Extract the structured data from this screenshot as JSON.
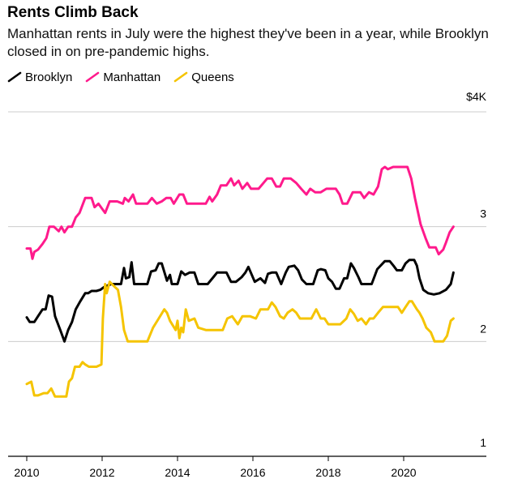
{
  "chart_data": {
    "type": "line",
    "title": "Rents Climb Back",
    "subtitle": "Manhattan rents in July were the highest they've been in a year, while Brooklyn closed in on pre-pandemic highs.",
    "xlabel": "",
    "ylabel": "",
    "x_ticks": [
      "2010",
      "2012",
      "2014",
      "2016",
      "2018",
      "2020"
    ],
    "y_ticks": [
      {
        "value": 4,
        "label": "$4K"
      },
      {
        "value": 3,
        "label": "3"
      },
      {
        "value": 2,
        "label": "2"
      },
      {
        "value": 1,
        "label": "1"
      }
    ],
    "xlim": [
      2009.85,
      2021.8
    ],
    "ylim": [
      1,
      4
    ],
    "series": [
      {
        "name": "Brooklyn",
        "color": "#000000",
        "points": [
          [
            2010.0,
            2.21
          ],
          [
            2010.08,
            2.17
          ],
          [
            2010.2,
            2.17
          ],
          [
            2010.3,
            2.22
          ],
          [
            2010.42,
            2.28
          ],
          [
            2010.5,
            2.28
          ],
          [
            2010.58,
            2.4
          ],
          [
            2010.67,
            2.39
          ],
          [
            2010.75,
            2.22
          ],
          [
            2010.9,
            2.09
          ],
          [
            2011.0,
            2.0
          ],
          [
            2011.1,
            2.1
          ],
          [
            2011.2,
            2.17
          ],
          [
            2011.3,
            2.28
          ],
          [
            2011.42,
            2.35
          ],
          [
            2011.55,
            2.42
          ],
          [
            2011.63,
            2.42
          ],
          [
            2011.72,
            2.44
          ],
          [
            2011.85,
            2.44
          ],
          [
            2011.95,
            2.45
          ],
          [
            2012.08,
            2.48
          ],
          [
            2012.25,
            2.5
          ],
          [
            2012.5,
            2.5
          ],
          [
            2012.58,
            2.64
          ],
          [
            2012.63,
            2.55
          ],
          [
            2012.72,
            2.56
          ],
          [
            2012.78,
            2.69
          ],
          [
            2012.85,
            2.5
          ],
          [
            2013.0,
            2.5
          ],
          [
            2013.2,
            2.5
          ],
          [
            2013.3,
            2.61
          ],
          [
            2013.42,
            2.62
          ],
          [
            2013.5,
            2.68
          ],
          [
            2013.58,
            2.68
          ],
          [
            2013.72,
            2.53
          ],
          [
            2013.8,
            2.58
          ],
          [
            2013.85,
            2.5
          ],
          [
            2014.0,
            2.5
          ],
          [
            2014.1,
            2.61
          ],
          [
            2014.2,
            2.58
          ],
          [
            2014.32,
            2.6
          ],
          [
            2014.45,
            2.6
          ],
          [
            2014.55,
            2.5
          ],
          [
            2014.8,
            2.5
          ],
          [
            2014.95,
            2.56
          ],
          [
            2015.05,
            2.6
          ],
          [
            2015.3,
            2.6
          ],
          [
            2015.42,
            2.52
          ],
          [
            2015.55,
            2.52
          ],
          [
            2015.7,
            2.56
          ],
          [
            2015.8,
            2.6
          ],
          [
            2015.88,
            2.65
          ],
          [
            2016.05,
            2.52
          ],
          [
            2016.2,
            2.55
          ],
          [
            2016.32,
            2.51
          ],
          [
            2016.4,
            2.59
          ],
          [
            2016.5,
            2.6
          ],
          [
            2016.62,
            2.6
          ],
          [
            2016.75,
            2.5
          ],
          [
            2016.87,
            2.6
          ],
          [
            2016.95,
            2.65
          ],
          [
            2017.1,
            2.66
          ],
          [
            2017.2,
            2.62
          ],
          [
            2017.3,
            2.54
          ],
          [
            2017.42,
            2.5
          ],
          [
            2017.6,
            2.5
          ],
          [
            2017.72,
            2.62
          ],
          [
            2017.8,
            2.63
          ],
          [
            2017.92,
            2.62
          ],
          [
            2018.0,
            2.55
          ],
          [
            2018.1,
            2.52
          ],
          [
            2018.2,
            2.46
          ],
          [
            2018.3,
            2.46
          ],
          [
            2018.42,
            2.55
          ],
          [
            2018.5,
            2.55
          ],
          [
            2018.6,
            2.68
          ],
          [
            2018.68,
            2.64
          ],
          [
            2018.8,
            2.56
          ],
          [
            2018.88,
            2.5
          ],
          [
            2019.15,
            2.5
          ],
          [
            2019.3,
            2.63
          ],
          [
            2019.5,
            2.7
          ],
          [
            2019.63,
            2.7
          ],
          [
            2019.73,
            2.66
          ],
          [
            2019.82,
            2.62
          ],
          [
            2019.95,
            2.62
          ],
          [
            2020.05,
            2.68
          ],
          [
            2020.15,
            2.71
          ],
          [
            2020.28,
            2.71
          ],
          [
            2020.35,
            2.66
          ],
          [
            2020.42,
            2.55
          ],
          [
            2020.52,
            2.45
          ],
          [
            2020.65,
            2.42
          ],
          [
            2020.8,
            2.41
          ],
          [
            2020.95,
            2.42
          ],
          [
            2021.12,
            2.45
          ],
          [
            2021.25,
            2.5
          ],
          [
            2021.32,
            2.6
          ]
        ]
      },
      {
        "name": "Manhattan",
        "color": "#ff1a8c",
        "points": [
          [
            2010.0,
            2.81
          ],
          [
            2010.1,
            2.81
          ],
          [
            2010.15,
            2.72
          ],
          [
            2010.2,
            2.78
          ],
          [
            2010.3,
            2.8
          ],
          [
            2010.42,
            2.85
          ],
          [
            2010.52,
            2.9
          ],
          [
            2010.6,
            3.0
          ],
          [
            2010.72,
            3.0
          ],
          [
            2010.85,
            2.96
          ],
          [
            2010.92,
            3.0
          ],
          [
            2011.0,
            2.95
          ],
          [
            2011.1,
            3.0
          ],
          [
            2011.2,
            3.0
          ],
          [
            2011.3,
            3.08
          ],
          [
            2011.4,
            3.12
          ],
          [
            2011.55,
            3.25
          ],
          [
            2011.72,
            3.25
          ],
          [
            2011.8,
            3.17
          ],
          [
            2011.9,
            3.2
          ],
          [
            2012.08,
            3.12
          ],
          [
            2012.2,
            3.22
          ],
          [
            2012.4,
            3.22
          ],
          [
            2012.55,
            3.2
          ],
          [
            2012.6,
            3.25
          ],
          [
            2012.7,
            3.22
          ],
          [
            2012.82,
            3.28
          ],
          [
            2012.9,
            3.2
          ],
          [
            2013.2,
            3.2
          ],
          [
            2013.32,
            3.25
          ],
          [
            2013.45,
            3.2
          ],
          [
            2013.58,
            3.22
          ],
          [
            2013.7,
            3.25
          ],
          [
            2013.82,
            3.25
          ],
          [
            2013.9,
            3.2
          ],
          [
            2014.05,
            3.28
          ],
          [
            2014.15,
            3.28
          ],
          [
            2014.25,
            3.2
          ],
          [
            2014.55,
            3.2
          ],
          [
            2014.75,
            3.2
          ],
          [
            2014.85,
            3.26
          ],
          [
            2014.92,
            3.22
          ],
          [
            2015.05,
            3.28
          ],
          [
            2015.15,
            3.36
          ],
          [
            2015.3,
            3.36
          ],
          [
            2015.42,
            3.42
          ],
          [
            2015.5,
            3.36
          ],
          [
            2015.62,
            3.4
          ],
          [
            2015.72,
            3.33
          ],
          [
            2015.85,
            3.38
          ],
          [
            2015.95,
            3.33
          ],
          [
            2016.15,
            3.33
          ],
          [
            2016.28,
            3.38
          ],
          [
            2016.38,
            3.42
          ],
          [
            2016.5,
            3.42
          ],
          [
            2016.62,
            3.35
          ],
          [
            2016.72,
            3.35
          ],
          [
            2016.82,
            3.42
          ],
          [
            2017.0,
            3.42
          ],
          [
            2017.15,
            3.38
          ],
          [
            2017.28,
            3.33
          ],
          [
            2017.42,
            3.28
          ],
          [
            2017.52,
            3.33
          ],
          [
            2017.65,
            3.3
          ],
          [
            2017.8,
            3.3
          ],
          [
            2017.95,
            3.33
          ],
          [
            2018.2,
            3.33
          ],
          [
            2018.3,
            3.28
          ],
          [
            2018.38,
            3.2
          ],
          [
            2018.5,
            3.2
          ],
          [
            2018.65,
            3.3
          ],
          [
            2018.85,
            3.3
          ],
          [
            2018.95,
            3.25
          ],
          [
            2019.08,
            3.3
          ],
          [
            2019.2,
            3.28
          ],
          [
            2019.32,
            3.35
          ],
          [
            2019.42,
            3.5
          ],
          [
            2019.5,
            3.52
          ],
          [
            2019.58,
            3.5
          ],
          [
            2019.72,
            3.52
          ],
          [
            2019.9,
            3.52
          ],
          [
            2020.1,
            3.52
          ],
          [
            2020.2,
            3.42
          ],
          [
            2020.3,
            3.25
          ],
          [
            2020.45,
            3.02
          ],
          [
            2020.58,
            2.9
          ],
          [
            2020.68,
            2.82
          ],
          [
            2020.85,
            2.82
          ],
          [
            2020.93,
            2.76
          ],
          [
            2021.05,
            2.8
          ],
          [
            2021.12,
            2.86
          ],
          [
            2021.22,
            2.95
          ],
          [
            2021.32,
            3.0
          ]
        ]
      },
      {
        "name": "Queens",
        "color": "#f5c400",
        "points": [
          [
            2010.0,
            1.63
          ],
          [
            2010.12,
            1.65
          ],
          [
            2010.2,
            1.53
          ],
          [
            2010.3,
            1.53
          ],
          [
            2010.45,
            1.55
          ],
          [
            2010.55,
            1.55
          ],
          [
            2010.65,
            1.59
          ],
          [
            2010.75,
            1.52
          ],
          [
            2010.95,
            1.52
          ],
          [
            2011.05,
            1.52
          ],
          [
            2011.12,
            1.65
          ],
          [
            2011.2,
            1.68
          ],
          [
            2011.28,
            1.78
          ],
          [
            2011.4,
            1.78
          ],
          [
            2011.48,
            1.82
          ],
          [
            2011.55,
            1.8
          ],
          [
            2011.65,
            1.78
          ],
          [
            2011.85,
            1.78
          ],
          [
            2011.98,
            1.8
          ],
          [
            2012.02,
            2.2
          ],
          [
            2012.08,
            2.5
          ],
          [
            2012.12,
            2.42
          ],
          [
            2012.2,
            2.52
          ],
          [
            2012.32,
            2.48
          ],
          [
            2012.42,
            2.45
          ],
          [
            2012.5,
            2.3
          ],
          [
            2012.58,
            2.1
          ],
          [
            2012.68,
            2.0
          ],
          [
            2013.0,
            2.0
          ],
          [
            2013.2,
            2.0
          ],
          [
            2013.35,
            2.12
          ],
          [
            2013.5,
            2.2
          ],
          [
            2013.65,
            2.28
          ],
          [
            2013.72,
            2.25
          ],
          [
            2013.8,
            2.18
          ],
          [
            2013.95,
            2.1
          ],
          [
            2014.0,
            2.18
          ],
          [
            2014.05,
            2.03
          ],
          [
            2014.1,
            2.12
          ],
          [
            2014.15,
            2.08
          ],
          [
            2014.22,
            2.28
          ],
          [
            2014.3,
            2.18
          ],
          [
            2014.45,
            2.2
          ],
          [
            2014.55,
            2.12
          ],
          [
            2014.75,
            2.1
          ],
          [
            2015.0,
            2.1
          ],
          [
            2015.2,
            2.1
          ],
          [
            2015.32,
            2.2
          ],
          [
            2015.45,
            2.22
          ],
          [
            2015.6,
            2.15
          ],
          [
            2015.72,
            2.22
          ],
          [
            2015.92,
            2.22
          ],
          [
            2016.08,
            2.2
          ],
          [
            2016.2,
            2.28
          ],
          [
            2016.4,
            2.28
          ],
          [
            2016.5,
            2.34
          ],
          [
            2016.6,
            2.3
          ],
          [
            2016.72,
            2.22
          ],
          [
            2016.82,
            2.2
          ],
          [
            2016.92,
            2.25
          ],
          [
            2017.05,
            2.28
          ],
          [
            2017.15,
            2.25
          ],
          [
            2017.25,
            2.2
          ],
          [
            2017.4,
            2.2
          ],
          [
            2017.55,
            2.2
          ],
          [
            2017.68,
            2.28
          ],
          [
            2017.8,
            2.2
          ],
          [
            2017.9,
            2.2
          ],
          [
            2018.0,
            2.15
          ],
          [
            2018.08,
            2.15
          ],
          [
            2018.2,
            2.15
          ],
          [
            2018.32,
            2.15
          ],
          [
            2018.48,
            2.2
          ],
          [
            2018.58,
            2.28
          ],
          [
            2018.68,
            2.24
          ],
          [
            2018.78,
            2.18
          ],
          [
            2018.88,
            2.2
          ],
          [
            2019.0,
            2.15
          ],
          [
            2019.1,
            2.2
          ],
          [
            2019.2,
            2.2
          ],
          [
            2019.32,
            2.25
          ],
          [
            2019.45,
            2.3
          ],
          [
            2019.6,
            2.3
          ],
          [
            2019.75,
            2.3
          ],
          [
            2019.85,
            2.3
          ],
          [
            2019.95,
            2.25
          ],
          [
            2020.05,
            2.3
          ],
          [
            2020.15,
            2.35
          ],
          [
            2020.22,
            2.35
          ],
          [
            2020.35,
            2.28
          ],
          [
            2020.42,
            2.25
          ],
          [
            2020.5,
            2.2
          ],
          [
            2020.6,
            2.12
          ],
          [
            2020.72,
            2.08
          ],
          [
            2020.82,
            2.0
          ],
          [
            2020.95,
            2.0
          ],
          [
            2021.05,
            2.0
          ],
          [
            2021.15,
            2.05
          ],
          [
            2021.25,
            2.18
          ],
          [
            2021.32,
            2.2
          ]
        ]
      }
    ],
    "grid": true,
    "legend_position": "top-left"
  }
}
